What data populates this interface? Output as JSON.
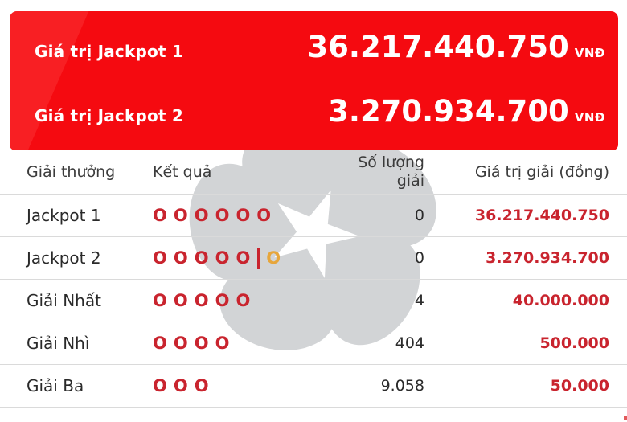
{
  "banner": {
    "jackpot1_label": "Giá trị Jackpot 1",
    "jackpot1_value": "36.217.440.750",
    "jackpot2_label": "Giá trị Jackpot 2",
    "jackpot2_value": "3.270.934.700",
    "currency": "VNĐ"
  },
  "table": {
    "headers": [
      "Giải thưởng",
      "Kết quả",
      "Số lượng giải",
      "Giá trị giải (đồng)"
    ],
    "rows": [
      {
        "prize": "Jackpot 1",
        "result_main": 6,
        "result_bonus": 0,
        "count": "0",
        "value": "36.217.440.750"
      },
      {
        "prize": "Jackpot 2",
        "result_main": 5,
        "result_bonus": 1,
        "count": "0",
        "value": "3.270.934.700"
      },
      {
        "prize": "Giải Nhất",
        "result_main": 5,
        "result_bonus": 0,
        "count": "4",
        "value": "40.000.000"
      },
      {
        "prize": "Giải Nhì",
        "result_main": 4,
        "result_bonus": 0,
        "count": "404",
        "value": "500.000"
      },
      {
        "prize": "Giải Ba",
        "result_main": 3,
        "result_bonus": 0,
        "count": "9.058",
        "value": "50.000"
      }
    ],
    "circle_glyph": "O"
  },
  "colors": {
    "banner_red": "#f50a10",
    "prize_red": "#c9242e",
    "bonus_orange": "#e7a63b",
    "watermark_gray": "#d2d4d6",
    "text_dark": "#2a2a2a",
    "separator": "#dadada"
  },
  "icons": {
    "watermark": "vietlott-flower-watermark",
    "result_circle": "lottery-ball-outline"
  }
}
